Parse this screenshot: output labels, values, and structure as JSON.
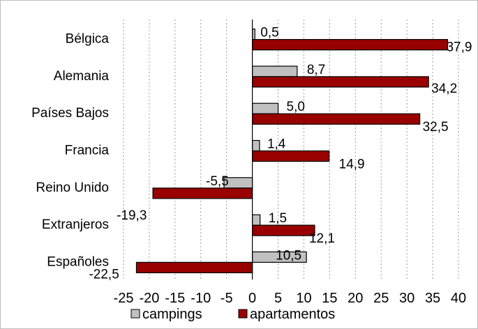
{
  "chart_data": {
    "type": "bar",
    "orientation": "horizontal",
    "categories": [
      "Bélgica",
      "Alemania",
      "Países Bajos",
      "Francia",
      "Reino Unido",
      "Extranjeros",
      "Españoles"
    ],
    "series": [
      {
        "name": "campings",
        "color": "#c0c0c0",
        "values": [
          0.5,
          8.7,
          5.0,
          1.4,
          -5.5,
          1.5,
          10.5
        ],
        "labels": [
          "0,5",
          "8,7",
          "5,0",
          "1,4",
          "-5,5",
          "1,5",
          "10,5"
        ]
      },
      {
        "name": "apartamentos",
        "color": "#990000",
        "values": [
          37.9,
          34.2,
          32.5,
          14.9,
          -19.3,
          12.1,
          -22.5
        ],
        "labels": [
          "37,9",
          "34,2",
          "32,5",
          "14,9",
          "-19,3",
          "12,1",
          "-22,5"
        ]
      }
    ],
    "xlim": [
      -25,
      40
    ],
    "xticks": [
      -25,
      -20,
      -15,
      -10,
      -5,
      0,
      5,
      10,
      15,
      20,
      25,
      30,
      35,
      40
    ],
    "grid": "vertical dashed",
    "legend": "bottom",
    "xlabel": "",
    "ylabel": ""
  }
}
